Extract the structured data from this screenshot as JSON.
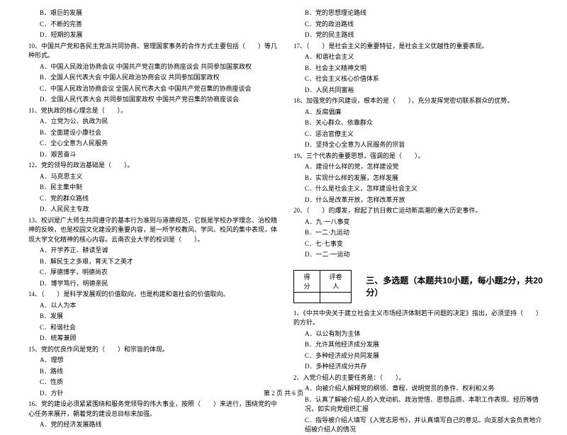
{
  "leftCol": {
    "preOptions": [
      "B．艰巨的发展",
      "C．不断的完善",
      "D．短期的发展"
    ],
    "q10": {
      "stem": "10、中国共产党和各民主党派共同协商、管理国家事务的合作方式主要包括（　　）等几种形式。",
      "opts": [
        "A．中国人民政治协商会议 中国共产党召集的协商座谈会 共同参加国家政权",
        "B．全国人民代表大会 中国人民政治协商会议 共同参加国家政权",
        "C．中国人民政治协商会议 全国人民代表大会 中国共产党召集的协商座谈会",
        "D．全国人民代表大会 共同参加国家政权 中国共产党召集的协商座谈会"
      ]
    },
    "q11": {
      "stem": "11、党执政的核心理念是（　　）。",
      "opts": [
        "A．立党为公、执政为民",
        "B．全面建设小康社会",
        "C．全心全意为人民服务",
        "D．艰苦奋斗"
      ]
    },
    "q12": {
      "stem": "12、党的领导的政治基础是（　　）。",
      "opts": [
        "A．马克思主义",
        "B．民主集中制",
        "C．党的群众路线",
        "D．人民民主专政"
      ]
    },
    "q13": {
      "stem": "13、校训是广大师生共同遵守的基本行为准则与道德规范，它既是学校办学理念、治校精神的反映，也是校园文化建设的重要内容，是一所学校教风、学风、校风的集中表现，体现大学文化精神的核心内容。云南农业大学的校训是（　　）。",
      "opts": [
        "A．开学养正、耕读至诚",
        "B．解民生之多艰，育天下之英才",
        "C．厚德博学，明德尚农",
        "D．博学笃行，明德亲民"
      ]
    },
    "q14": {
      "stem": "14、（　　）是科学发展观的价值取向，也是构建和谐社会的价值取向。",
      "opts": [
        "A．以人为本",
        "B．发展",
        "C．和谐社会",
        "D．统筹兼顾"
      ]
    },
    "q15": {
      "stem": "15、党的优良作风是党的（　　）和宗旨的体现。",
      "opts": [
        "A．理想",
        "B．路线",
        "C．性质",
        "D．方针"
      ]
    },
    "q16": {
      "stem": "16、党的建设必须紧紧围绕和服务党领导的伟大事业，按照（　　）来进行，围绕党的中心任务来展开，朝着党的建设总目标来加强。",
      "opts": [
        "A．党的经济发展路线"
      ]
    }
  },
  "rightCol": {
    "preOptions": [
      "B．党的思想理论路线",
      "C．党的政治路线",
      "D．党的民主路线"
    ],
    "q17": {
      "stem": "17、（　　）是社会主义的重要特征，是社会主义优越性的重要表现。",
      "opts": [
        "A．和谐社会主义",
        "B．社会主义精神文明",
        "C．社会主义核心价值体系",
        "D．人民共同富裕"
      ]
    },
    "q18": {
      "stem": "18、加强党的作风建设，根本的是（　　），充分发挥党密切联系群众的优势。",
      "opts": [
        "A．反腐倡廉",
        "B．关心群众、依靠群众",
        "C．惩治官僚主义",
        "D．坚持全心全意为人民服务的宗旨"
      ]
    },
    "q19": {
      "stem": "19、三个代表的重要思想，强调的是（　　）。",
      "opts": [
        "A．建设什么样的党，怎样建设党",
        "B．实现什么样的发展，怎样发展",
        "C．什么是社会主义，怎样建设社会主义",
        "D．什么是改革开放，怎样改革开放"
      ]
    },
    "q20": {
      "stem": "20、（　　）的爆发，掀起了抗日救亡运动新高潮的重大历史事件。",
      "opts": [
        "A．九·一八事变",
        "B．一二·九运动",
        "C．七·七事变",
        "D．一二·一运动"
      ]
    },
    "section": {
      "scoreHeader1": "得分",
      "scoreHeader2": "评卷人",
      "title": "三、多选题（本题共10小题，每小题2分，共20分）"
    },
    "mq1": {
      "stem": "1、《中共中央关于建立社会主义市场经济体制若干问题的决定》指出，必须坚持（　　）的方针。",
      "opts": [
        "A．以公有制为主体",
        "B．允许其他经济成分发展",
        "C．多种经济成分共同发展",
        "D．多种经济成分共存"
      ]
    },
    "mq2": {
      "stem": "2、入党介绍人的主要任务是：（　　）。",
      "optsLong": [
        "A．向被介绍人解释党的纲领、章程，说明党员的条件、权利和义务",
        "B．认真了解被介绍人的入党动机、政治觉悟、思想品质、本职工作表现、经历等情况，如实向党组织汇报",
        "C．指导被介绍人填写《入党志愿书》，并认真填写自己的意见。向支部大会负责地介绍被介绍人的情况"
      ]
    }
  },
  "footer": "第 2 页 共 6 页"
}
